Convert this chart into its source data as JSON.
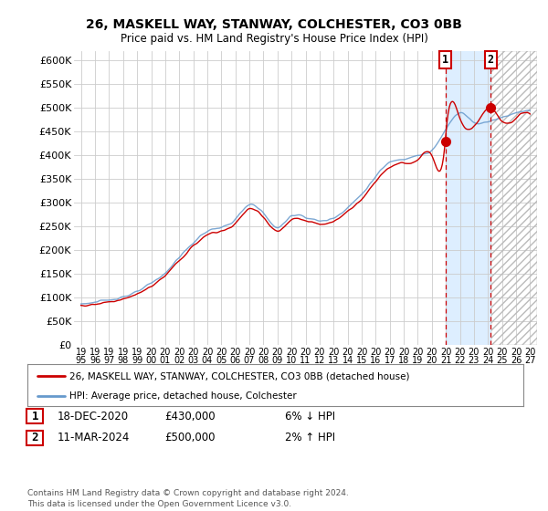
{
  "title": "26, MASKELL WAY, STANWAY, COLCHESTER, CO3 0BB",
  "subtitle": "Price paid vs. HM Land Registry's House Price Index (HPI)",
  "ylim": [
    0,
    620000
  ],
  "yticks": [
    0,
    50000,
    100000,
    150000,
    200000,
    250000,
    300000,
    350000,
    400000,
    450000,
    500000,
    550000,
    600000
  ],
  "ytick_labels": [
    "£0",
    "£50K",
    "£100K",
    "£150K",
    "£200K",
    "£250K",
    "£300K",
    "£350K",
    "£400K",
    "£450K",
    "£500K",
    "£550K",
    "£600K"
  ],
  "hpi_color": "#6699cc",
  "price_color": "#cc0000",
  "sale1_x": 2020.96,
  "sale1_y": 430000,
  "sale2_x": 2024.19,
  "sale2_y": 500000,
  "legend_line1": "26, MASKELL WAY, STANWAY, COLCHESTER, CO3 0BB (detached house)",
  "legend_line2": "HPI: Average price, detached house, Colchester",
  "note1_date": "18-DEC-2020",
  "note1_price": "£430,000",
  "note1_change": "6% ↓ HPI",
  "note2_date": "11-MAR-2024",
  "note2_price": "£500,000",
  "note2_change": "2% ↑ HPI",
  "footer": "Contains HM Land Registry data © Crown copyright and database right 2024.\nThis data is licensed under the Open Government Licence v3.0.",
  "bg_color": "#ffffff",
  "plot_bg_color": "#ffffff",
  "vline_color": "#cc0000",
  "hpi_x_end": 2027.5,
  "x_start": 1994.5,
  "xtick_years": [
    1995,
    1996,
    1997,
    1998,
    1999,
    2000,
    2001,
    2002,
    2003,
    2004,
    2005,
    2006,
    2007,
    2008,
    2009,
    2010,
    2011,
    2012,
    2013,
    2014,
    2015,
    2016,
    2017,
    2018,
    2019,
    2020,
    2021,
    2022,
    2023,
    2024,
    2025,
    2026,
    2027
  ],
  "future_start": 2024.25,
  "shade_start": 2020.96,
  "shade_end": 2024.19,
  "shade_color": "#ddeeff"
}
